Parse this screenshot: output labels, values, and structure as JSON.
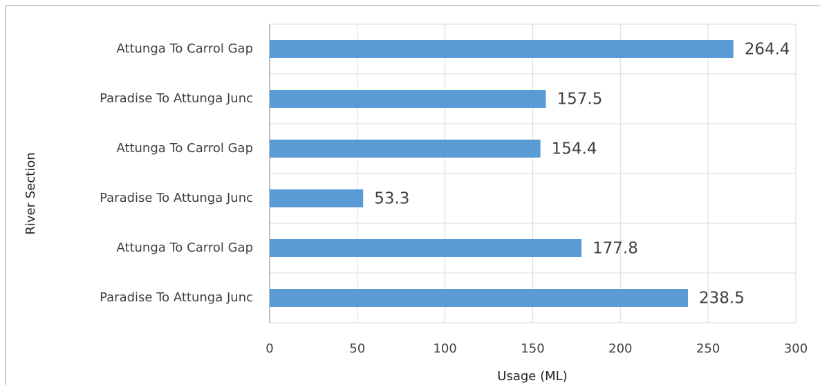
{
  "chart_data": {
    "type": "bar",
    "orientation": "horizontal",
    "xlabel": "Usage (ML)",
    "ylabel": "River Section",
    "categories": [
      "Attunga To Carrol Gap",
      "Paradise To Attunga Junc",
      "Attunga To Carrol Gap",
      "Paradise To Attunga Junc",
      "Attunga To Carrol Gap",
      "Paradise To Attunga Junc"
    ],
    "values": [
      264.4,
      157.5,
      154.4,
      53.3,
      177.8,
      238.5
    ],
    "color": "#5b9bd5",
    "xlim": [
      0,
      300
    ],
    "xticks": [
      0,
      50,
      100,
      150,
      200,
      250,
      300
    ],
    "grid": true
  }
}
